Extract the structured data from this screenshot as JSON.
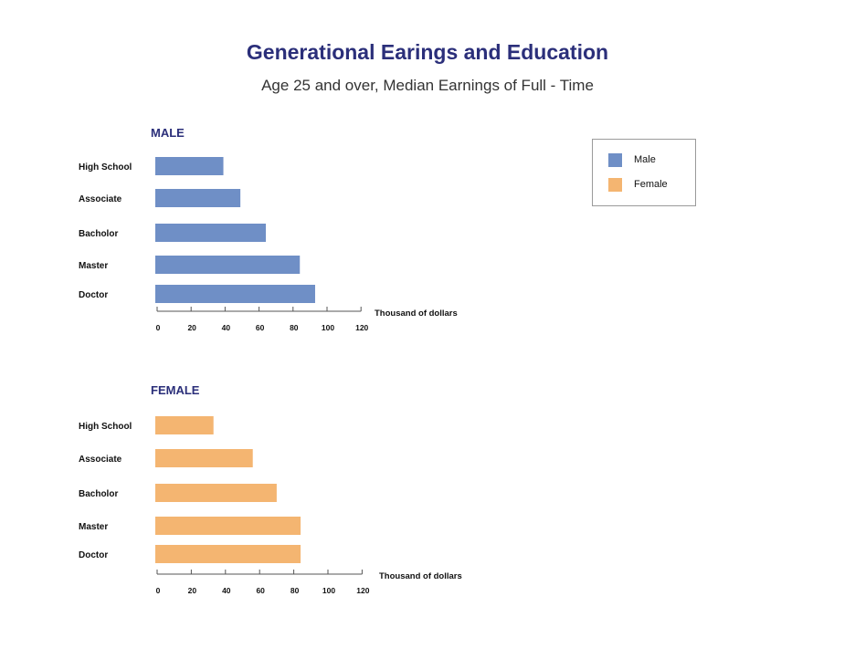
{
  "title": "Generational Earings and Education",
  "subtitle": "Age 25 and over, Median Earnings of Full - Time",
  "legend": [
    {
      "label": "Male",
      "color": "#6f8fc6"
    },
    {
      "label": "Female",
      "color": "#f4b571"
    }
  ],
  "chart_data": [
    {
      "type": "bar",
      "orientation": "horizontal",
      "title": "MALE",
      "categories": [
        "High School",
        "Associate",
        "Bacholor",
        "Master",
        "Doctor"
      ],
      "values": [
        39,
        49,
        64,
        84,
        93
      ],
      "color": "#6f8fc6",
      "xlabel": "Thousand of dollars",
      "xlim": [
        0,
        120
      ],
      "xticks": [
        "0",
        "20",
        "40",
        "60",
        "80",
        "100",
        "120"
      ],
      "grid": false
    },
    {
      "type": "bar",
      "orientation": "horizontal",
      "title": "FEMALE",
      "categories": [
        "High School",
        "Associate",
        "Bacholor",
        "Master",
        "Doctor"
      ],
      "values": [
        33,
        56,
        70,
        84,
        84
      ],
      "color": "#f4b571",
      "xlabel": "Thousand of dollars",
      "xlim": [
        0,
        120
      ],
      "xticks": [
        "0",
        "20",
        "40",
        "60",
        "80",
        "100",
        "120"
      ],
      "grid": false
    }
  ]
}
